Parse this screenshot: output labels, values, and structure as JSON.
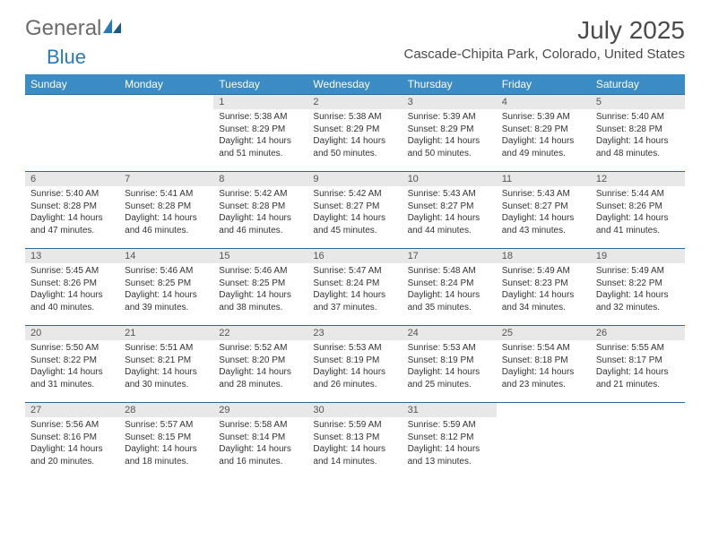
{
  "brand": {
    "part1": "General",
    "part2": "Blue"
  },
  "title": "July 2025",
  "location": "Cascade-Chipita Park, Colorado, United States",
  "colors": {
    "header_bg": "#3b8bc4",
    "header_text": "#ffffff",
    "daynum_bg": "#e8e8e8",
    "rule": "#2a6a9a",
    "body_text": "#333333",
    "title_text": "#4a4a4a",
    "brand_gray": "#6b6b6b",
    "brand_blue": "#2a7ab8"
  },
  "typography": {
    "title_fontsize": 28,
    "location_fontsize": 15,
    "dayheader_fontsize": 12,
    "daynum_fontsize": 11,
    "cell_fontsize": 10
  },
  "dayHeaders": [
    "Sunday",
    "Monday",
    "Tuesday",
    "Wednesday",
    "Thursday",
    "Friday",
    "Saturday"
  ],
  "weeks": [
    [
      null,
      null,
      {
        "n": "1",
        "sunrise": "5:38 AM",
        "sunset": "8:29 PM",
        "dl1": "Daylight: 14 hours",
        "dl2": "and 51 minutes."
      },
      {
        "n": "2",
        "sunrise": "5:38 AM",
        "sunset": "8:29 PM",
        "dl1": "Daylight: 14 hours",
        "dl2": "and 50 minutes."
      },
      {
        "n": "3",
        "sunrise": "5:39 AM",
        "sunset": "8:29 PM",
        "dl1": "Daylight: 14 hours",
        "dl2": "and 50 minutes."
      },
      {
        "n": "4",
        "sunrise": "5:39 AM",
        "sunset": "8:29 PM",
        "dl1": "Daylight: 14 hours",
        "dl2": "and 49 minutes."
      },
      {
        "n": "5",
        "sunrise": "5:40 AM",
        "sunset": "8:28 PM",
        "dl1": "Daylight: 14 hours",
        "dl2": "and 48 minutes."
      }
    ],
    [
      {
        "n": "6",
        "sunrise": "5:40 AM",
        "sunset": "8:28 PM",
        "dl1": "Daylight: 14 hours",
        "dl2": "and 47 minutes."
      },
      {
        "n": "7",
        "sunrise": "5:41 AM",
        "sunset": "8:28 PM",
        "dl1": "Daylight: 14 hours",
        "dl2": "and 46 minutes."
      },
      {
        "n": "8",
        "sunrise": "5:42 AM",
        "sunset": "8:28 PM",
        "dl1": "Daylight: 14 hours",
        "dl2": "and 46 minutes."
      },
      {
        "n": "9",
        "sunrise": "5:42 AM",
        "sunset": "8:27 PM",
        "dl1": "Daylight: 14 hours",
        "dl2": "and 45 minutes."
      },
      {
        "n": "10",
        "sunrise": "5:43 AM",
        "sunset": "8:27 PM",
        "dl1": "Daylight: 14 hours",
        "dl2": "and 44 minutes."
      },
      {
        "n": "11",
        "sunrise": "5:43 AM",
        "sunset": "8:27 PM",
        "dl1": "Daylight: 14 hours",
        "dl2": "and 43 minutes."
      },
      {
        "n": "12",
        "sunrise": "5:44 AM",
        "sunset": "8:26 PM",
        "dl1": "Daylight: 14 hours",
        "dl2": "and 41 minutes."
      }
    ],
    [
      {
        "n": "13",
        "sunrise": "5:45 AM",
        "sunset": "8:26 PM",
        "dl1": "Daylight: 14 hours",
        "dl2": "and 40 minutes."
      },
      {
        "n": "14",
        "sunrise": "5:46 AM",
        "sunset": "8:25 PM",
        "dl1": "Daylight: 14 hours",
        "dl2": "and 39 minutes."
      },
      {
        "n": "15",
        "sunrise": "5:46 AM",
        "sunset": "8:25 PM",
        "dl1": "Daylight: 14 hours",
        "dl2": "and 38 minutes."
      },
      {
        "n": "16",
        "sunrise": "5:47 AM",
        "sunset": "8:24 PM",
        "dl1": "Daylight: 14 hours",
        "dl2": "and 37 minutes."
      },
      {
        "n": "17",
        "sunrise": "5:48 AM",
        "sunset": "8:24 PM",
        "dl1": "Daylight: 14 hours",
        "dl2": "and 35 minutes."
      },
      {
        "n": "18",
        "sunrise": "5:49 AM",
        "sunset": "8:23 PM",
        "dl1": "Daylight: 14 hours",
        "dl2": "and 34 minutes."
      },
      {
        "n": "19",
        "sunrise": "5:49 AM",
        "sunset": "8:22 PM",
        "dl1": "Daylight: 14 hours",
        "dl2": "and 32 minutes."
      }
    ],
    [
      {
        "n": "20",
        "sunrise": "5:50 AM",
        "sunset": "8:22 PM",
        "dl1": "Daylight: 14 hours",
        "dl2": "and 31 minutes."
      },
      {
        "n": "21",
        "sunrise": "5:51 AM",
        "sunset": "8:21 PM",
        "dl1": "Daylight: 14 hours",
        "dl2": "and 30 minutes."
      },
      {
        "n": "22",
        "sunrise": "5:52 AM",
        "sunset": "8:20 PM",
        "dl1": "Daylight: 14 hours",
        "dl2": "and 28 minutes."
      },
      {
        "n": "23",
        "sunrise": "5:53 AM",
        "sunset": "8:19 PM",
        "dl1": "Daylight: 14 hours",
        "dl2": "and 26 minutes."
      },
      {
        "n": "24",
        "sunrise": "5:53 AM",
        "sunset": "8:19 PM",
        "dl1": "Daylight: 14 hours",
        "dl2": "and 25 minutes."
      },
      {
        "n": "25",
        "sunrise": "5:54 AM",
        "sunset": "8:18 PM",
        "dl1": "Daylight: 14 hours",
        "dl2": "and 23 minutes."
      },
      {
        "n": "26",
        "sunrise": "5:55 AM",
        "sunset": "8:17 PM",
        "dl1": "Daylight: 14 hours",
        "dl2": "and 21 minutes."
      }
    ],
    [
      {
        "n": "27",
        "sunrise": "5:56 AM",
        "sunset": "8:16 PM",
        "dl1": "Daylight: 14 hours",
        "dl2": "and 20 minutes."
      },
      {
        "n": "28",
        "sunrise": "5:57 AM",
        "sunset": "8:15 PM",
        "dl1": "Daylight: 14 hours",
        "dl2": "and 18 minutes."
      },
      {
        "n": "29",
        "sunrise": "5:58 AM",
        "sunset": "8:14 PM",
        "dl1": "Daylight: 14 hours",
        "dl2": "and 16 minutes."
      },
      {
        "n": "30",
        "sunrise": "5:59 AM",
        "sunset": "8:13 PM",
        "dl1": "Daylight: 14 hours",
        "dl2": "and 14 minutes."
      },
      {
        "n": "31",
        "sunrise": "5:59 AM",
        "sunset": "8:12 PM",
        "dl1": "Daylight: 14 hours",
        "dl2": "and 13 minutes."
      },
      null,
      null
    ]
  ],
  "labels": {
    "sunrise": "Sunrise: ",
    "sunset": "Sunset: "
  }
}
